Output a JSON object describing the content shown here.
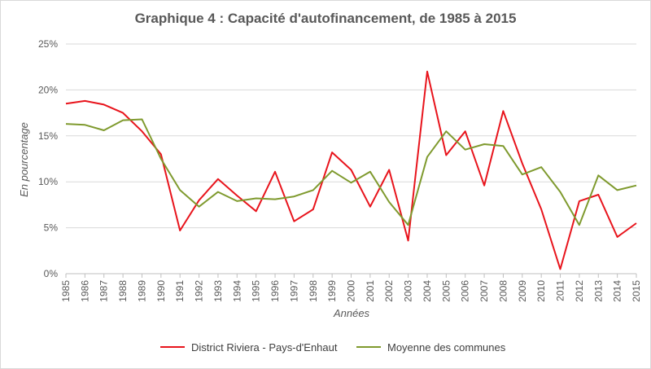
{
  "chart_data": {
    "type": "line",
    "title": "Graphique 4 : Capacité d'autofinancement, de 1985 à 2015",
    "xlabel": "Années",
    "ylabel": "En pourcentage",
    "ylim": [
      0,
      25
    ],
    "y_ticks": [
      "0%",
      "5%",
      "10%",
      "15%",
      "20%",
      "25%"
    ],
    "y_tick_values": [
      0,
      5,
      10,
      15,
      20,
      25
    ],
    "grid": "horizontal",
    "legend_position": "bottom",
    "categories": [
      "1985",
      "1986",
      "1987",
      "1988",
      "1989",
      "1990",
      "1991",
      "1992",
      "1993",
      "1994",
      "1995",
      "1996",
      "1997",
      "1998",
      "1999",
      "2000",
      "2001",
      "2002",
      "2003",
      "2004",
      "2005",
      "2006",
      "2007",
      "2008",
      "2009",
      "2010",
      "2011",
      "2012",
      "2013",
      "2014",
      "2015"
    ],
    "series": [
      {
        "name": "District Riviera - Pays-d'Enhaut",
        "color": "#e8141c",
        "values": [
          18.5,
          18.8,
          18.4,
          17.5,
          15.5,
          13.0,
          4.7,
          8.0,
          10.3,
          8.5,
          6.8,
          11.1,
          5.7,
          7.0,
          13.2,
          11.3,
          7.3,
          11.3,
          3.6,
          22.0,
          12.9,
          15.5,
          9.6,
          17.7,
          12.0,
          7.0,
          0.5,
          7.9,
          8.6,
          4.0,
          5.5
        ]
      },
      {
        "name": "Moyenne des communes",
        "color": "#7f9a2e",
        "values": [
          16.3,
          16.2,
          15.6,
          16.7,
          16.8,
          12.5,
          9.1,
          7.3,
          8.9,
          7.9,
          8.2,
          8.1,
          8.4,
          9.1,
          11.2,
          9.9,
          11.1,
          7.8,
          5.3,
          12.7,
          15.5,
          13.5,
          14.1,
          13.9,
          10.8,
          11.6,
          8.9,
          5.3,
          10.7,
          9.1,
          9.6
        ]
      }
    ]
  }
}
